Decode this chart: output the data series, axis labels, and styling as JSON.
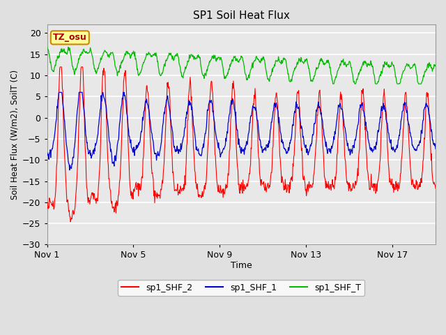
{
  "title": "SP1 Soil Heat Flux",
  "xlabel": "Time",
  "ylabel": "Soil Heat Flux (W/m2), SoilT (C)",
  "ylim": [
    -30,
    22
  ],
  "yticks": [
    -30,
    -25,
    -20,
    -15,
    -10,
    -5,
    0,
    5,
    10,
    15,
    20
  ],
  "bg_color": "#e0e0e0",
  "plot_bg_color": "#e8e8e8",
  "grid_color": "#ffffff",
  "line_colors": {
    "sp1_SHF_2": "#ff0000",
    "sp1_SHF_1": "#0000cc",
    "sp1_SHF_T": "#00bb00"
  },
  "annotation_text": "TZ_osu",
  "annotation_bg": "#ffff99",
  "annotation_border": "#cc8800",
  "annotation_text_color": "#aa0000",
  "x_tick_labels": [
    "Nov 1",
    "Nov 5",
    "Nov 9",
    "Nov 13",
    "Nov 17"
  ],
  "figsize": [
    6.4,
    4.8
  ],
  "dpi": 100
}
